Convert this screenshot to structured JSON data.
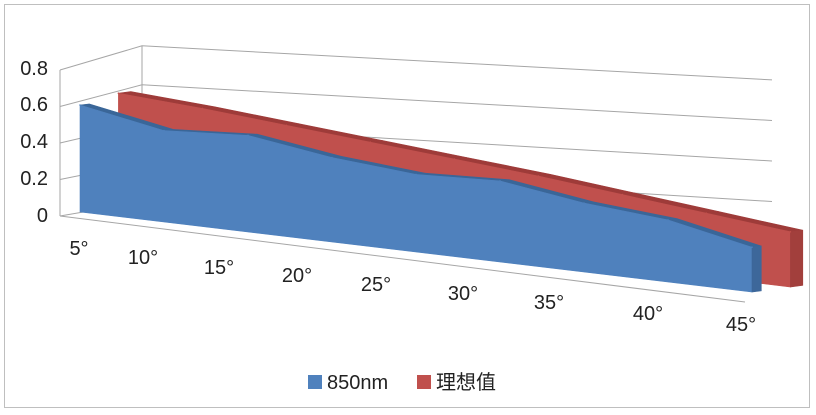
{
  "chart_data": {
    "type": "area",
    "view": "3d",
    "title": "",
    "xlabel": "",
    "ylabel": "",
    "categories": [
      "5°",
      "10°",
      "15°",
      "20°",
      "25°",
      "30°",
      "35°",
      "40°",
      "45°"
    ],
    "ylim": [
      0,
      0.8
    ],
    "yticks": [
      "0",
      "0.2",
      "0.4",
      "0.6",
      "0.8"
    ],
    "grid": true,
    "legend_position": "bottom",
    "series": [
      {
        "name": "850nm",
        "color": "#4F81BD",
        "values": [
          0.62,
          0.53,
          0.56,
          0.49,
          0.45,
          0.47,
          0.4,
          0.36,
          0.26
        ]
      },
      {
        "name": "理想值",
        "color": "#C0504D",
        "values": [
          0.66,
          0.63,
          0.59,
          0.55,
          0.51,
          0.47,
          0.42,
          0.37,
          0.32
        ]
      }
    ]
  }
}
